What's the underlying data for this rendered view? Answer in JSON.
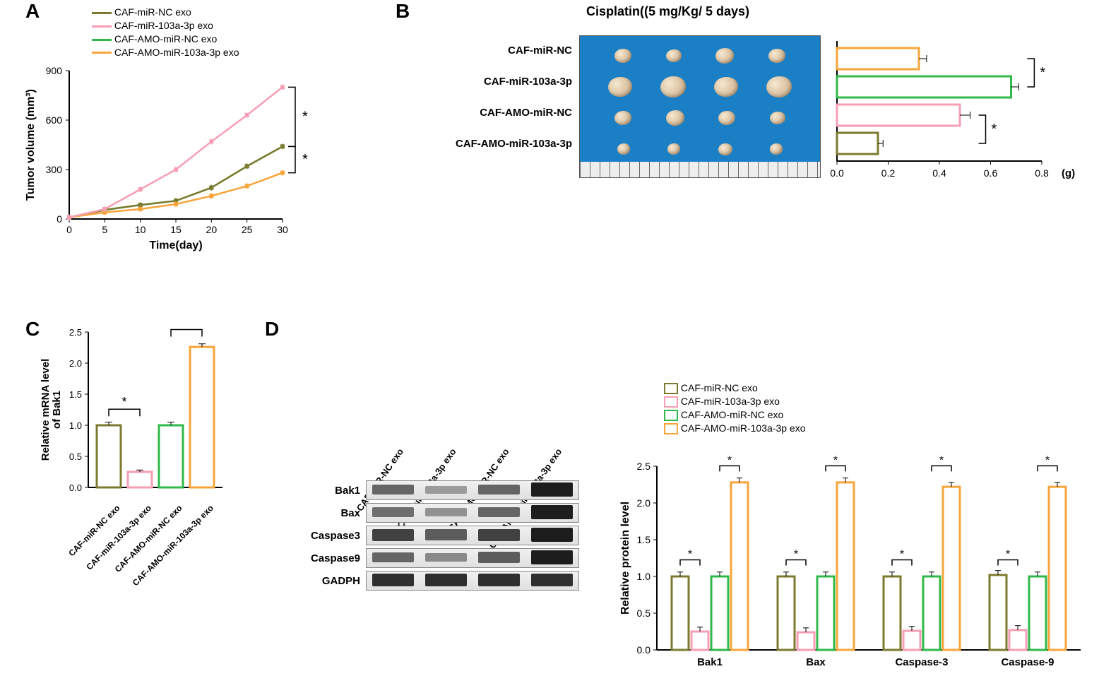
{
  "colors": {
    "olive": "#7d7a2f",
    "pink": "#f79eb4",
    "green": "#2fb94a",
    "orange": "#f7a53a",
    "black": "#000000",
    "axis": "#000000"
  },
  "groups": {
    "g1": "CAF-miR-NC exo",
    "g2": "CAF-miR-103a-3p exo",
    "g3": "CAF-AMO-miR-NC exo",
    "g4": "CAF-AMO-miR-103a-3p exo",
    "g1s": "CAF-miR-NC",
    "g2s": "CAF-miR-103a-3p",
    "g3s": "CAF-AMO-miR-NC",
    "g4s": "CAF-AMO-miR-103a-3p"
  },
  "panelA": {
    "label": "A",
    "xlabel": "Time(day)",
    "ylabel": "Tumor volume (mm³)",
    "xlim": [
      0,
      30
    ],
    "ylim": [
      0,
      900
    ],
    "xticks": [
      0,
      5,
      10,
      15,
      20,
      25,
      30
    ],
    "yticks": [
      0,
      300,
      600,
      900
    ],
    "series": {
      "g1": {
        "color": "#7d7a2f",
        "y": [
          10,
          55,
          85,
          110,
          190,
          320,
          440
        ]
      },
      "g2": {
        "color": "#f79eb4",
        "y": [
          10,
          60,
          180,
          300,
          470,
          630,
          800
        ]
      },
      "g3": {
        "color": "#2fb94a",
        "y": [
          10,
          55,
          85,
          110,
          190,
          320,
          440
        ]
      },
      "g4": {
        "color": "#f7a53a",
        "y": [
          10,
          40,
          60,
          90,
          140,
          200,
          280
        ]
      }
    },
    "sig": "*"
  },
  "panelB": {
    "label": "B",
    "title": "Cisplatin((5 mg/Kg/ 5 days)",
    "xlabel_unit": "(g)",
    "xlim": [
      0,
      0.8
    ],
    "xticks": [
      0.0,
      0.2,
      0.4,
      0.6,
      0.8
    ],
    "bars": [
      {
        "group": "g4",
        "value": 0.32,
        "err": 0.03,
        "color": "#f7a53a"
      },
      {
        "group": "g3",
        "value": 0.68,
        "err": 0.03,
        "color": "#2fb94a"
      },
      {
        "group": "g2",
        "value": 0.48,
        "err": 0.04,
        "color": "#f79eb4"
      },
      {
        "group": "g1",
        "value": 0.16,
        "err": 0.02,
        "color": "#7d7a2f"
      }
    ],
    "tumor_sizes": {
      "g1s": [
        24,
        22,
        26,
        24
      ],
      "g2s": [
        34,
        36,
        34,
        36
      ],
      "g3s": [
        24,
        26,
        24,
        22
      ],
      "g4s": [
        18,
        18,
        20,
        18
      ]
    },
    "sig": "*"
  },
  "panelC": {
    "label": "C",
    "ylabel": "Relative mRNA level\nof Bak1",
    "ylim": [
      0,
      2.5
    ],
    "yticks": [
      0.0,
      0.5,
      1.0,
      1.5,
      2.0,
      2.5
    ],
    "bars": [
      {
        "group": "g1",
        "value": 1.0,
        "err": 0.05,
        "color": "#7d7a2f"
      },
      {
        "group": "g2",
        "value": 0.25,
        "err": 0.03,
        "color": "#f79eb4"
      },
      {
        "group": "g3",
        "value": 1.0,
        "err": 0.05,
        "color": "#2fb94a"
      },
      {
        "group": "g4",
        "value": 2.26,
        "err": 0.05,
        "color": "#f7a53a"
      }
    ],
    "sig": "*"
  },
  "panelD": {
    "label": "D",
    "ylabel": "Relative  protein level",
    "ylim": [
      0,
      2.5
    ],
    "yticks": [
      0.0,
      0.5,
      1.0,
      1.5,
      2.0,
      2.5
    ],
    "proteins": [
      "Bak1",
      "Bax",
      "Caspase-3",
      "Caspase-9"
    ],
    "wb_labels": [
      "Bak1",
      "Bax",
      "Caspase3",
      "Caspase9",
      "GADPH"
    ],
    "wb_intensities": {
      "Bak1": [
        0.55,
        0.25,
        0.55,
        0.95
      ],
      "Bax": [
        0.5,
        0.3,
        0.55,
        0.95
      ],
      "Caspase3": [
        0.75,
        0.6,
        0.75,
        0.95
      ],
      "Caspase9": [
        0.55,
        0.35,
        0.6,
        0.95
      ],
      "GADPH": [
        0.85,
        0.85,
        0.85,
        0.85
      ]
    },
    "values": {
      "g1": [
        1.0,
        1.0,
        1.0,
        1.02
      ],
      "g2": [
        0.25,
        0.24,
        0.26,
        0.27
      ],
      "g3": [
        1.0,
        1.0,
        1.0,
        1.0
      ],
      "g4": [
        2.28,
        2.28,
        2.22,
        2.22
      ]
    },
    "err": 0.06,
    "sig": "*"
  }
}
